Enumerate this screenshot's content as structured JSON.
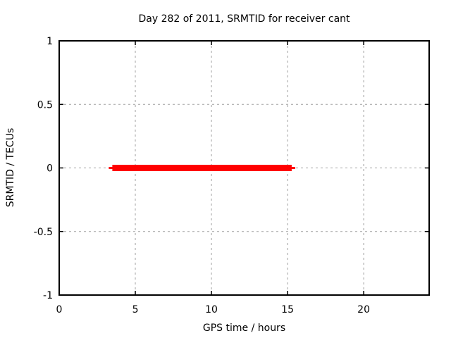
{
  "chart_data": {
    "type": "line",
    "title": "Day 282 of 2011, SRMTID for receiver cant",
    "xlabel": "GPS time / hours",
    "ylabel": "SRMTID / TECUs",
    "xlim": [
      0,
      24.3
    ],
    "ylim": [
      -1,
      1
    ],
    "x_ticks": [
      0,
      5,
      10,
      15,
      20
    ],
    "y_ticks": [
      -1,
      -0.5,
      0,
      0.5,
      1
    ],
    "grid": {
      "show": true,
      "style": "dashed",
      "on": "major-ticks"
    },
    "legend": {
      "show": false
    },
    "colors": {
      "series_red": "#ff0000",
      "grid": "#a0a0a0",
      "border": "#000000",
      "text": "#000000",
      "background": "#ffffff"
    },
    "series": [
      {
        "name": "SRMTID",
        "color": "#ff0000",
        "description": "constant zero value between ~3.5 and ~15.3 hours",
        "segments": [
          {
            "x": [
              3.26,
              15.5
            ],
            "y": [
              0,
              0
            ],
            "stroke_width": 3
          },
          {
            "x": [
              3.49,
              15.27
            ],
            "y": [
              0,
              0
            ],
            "stroke_width": 9
          }
        ]
      }
    ]
  }
}
